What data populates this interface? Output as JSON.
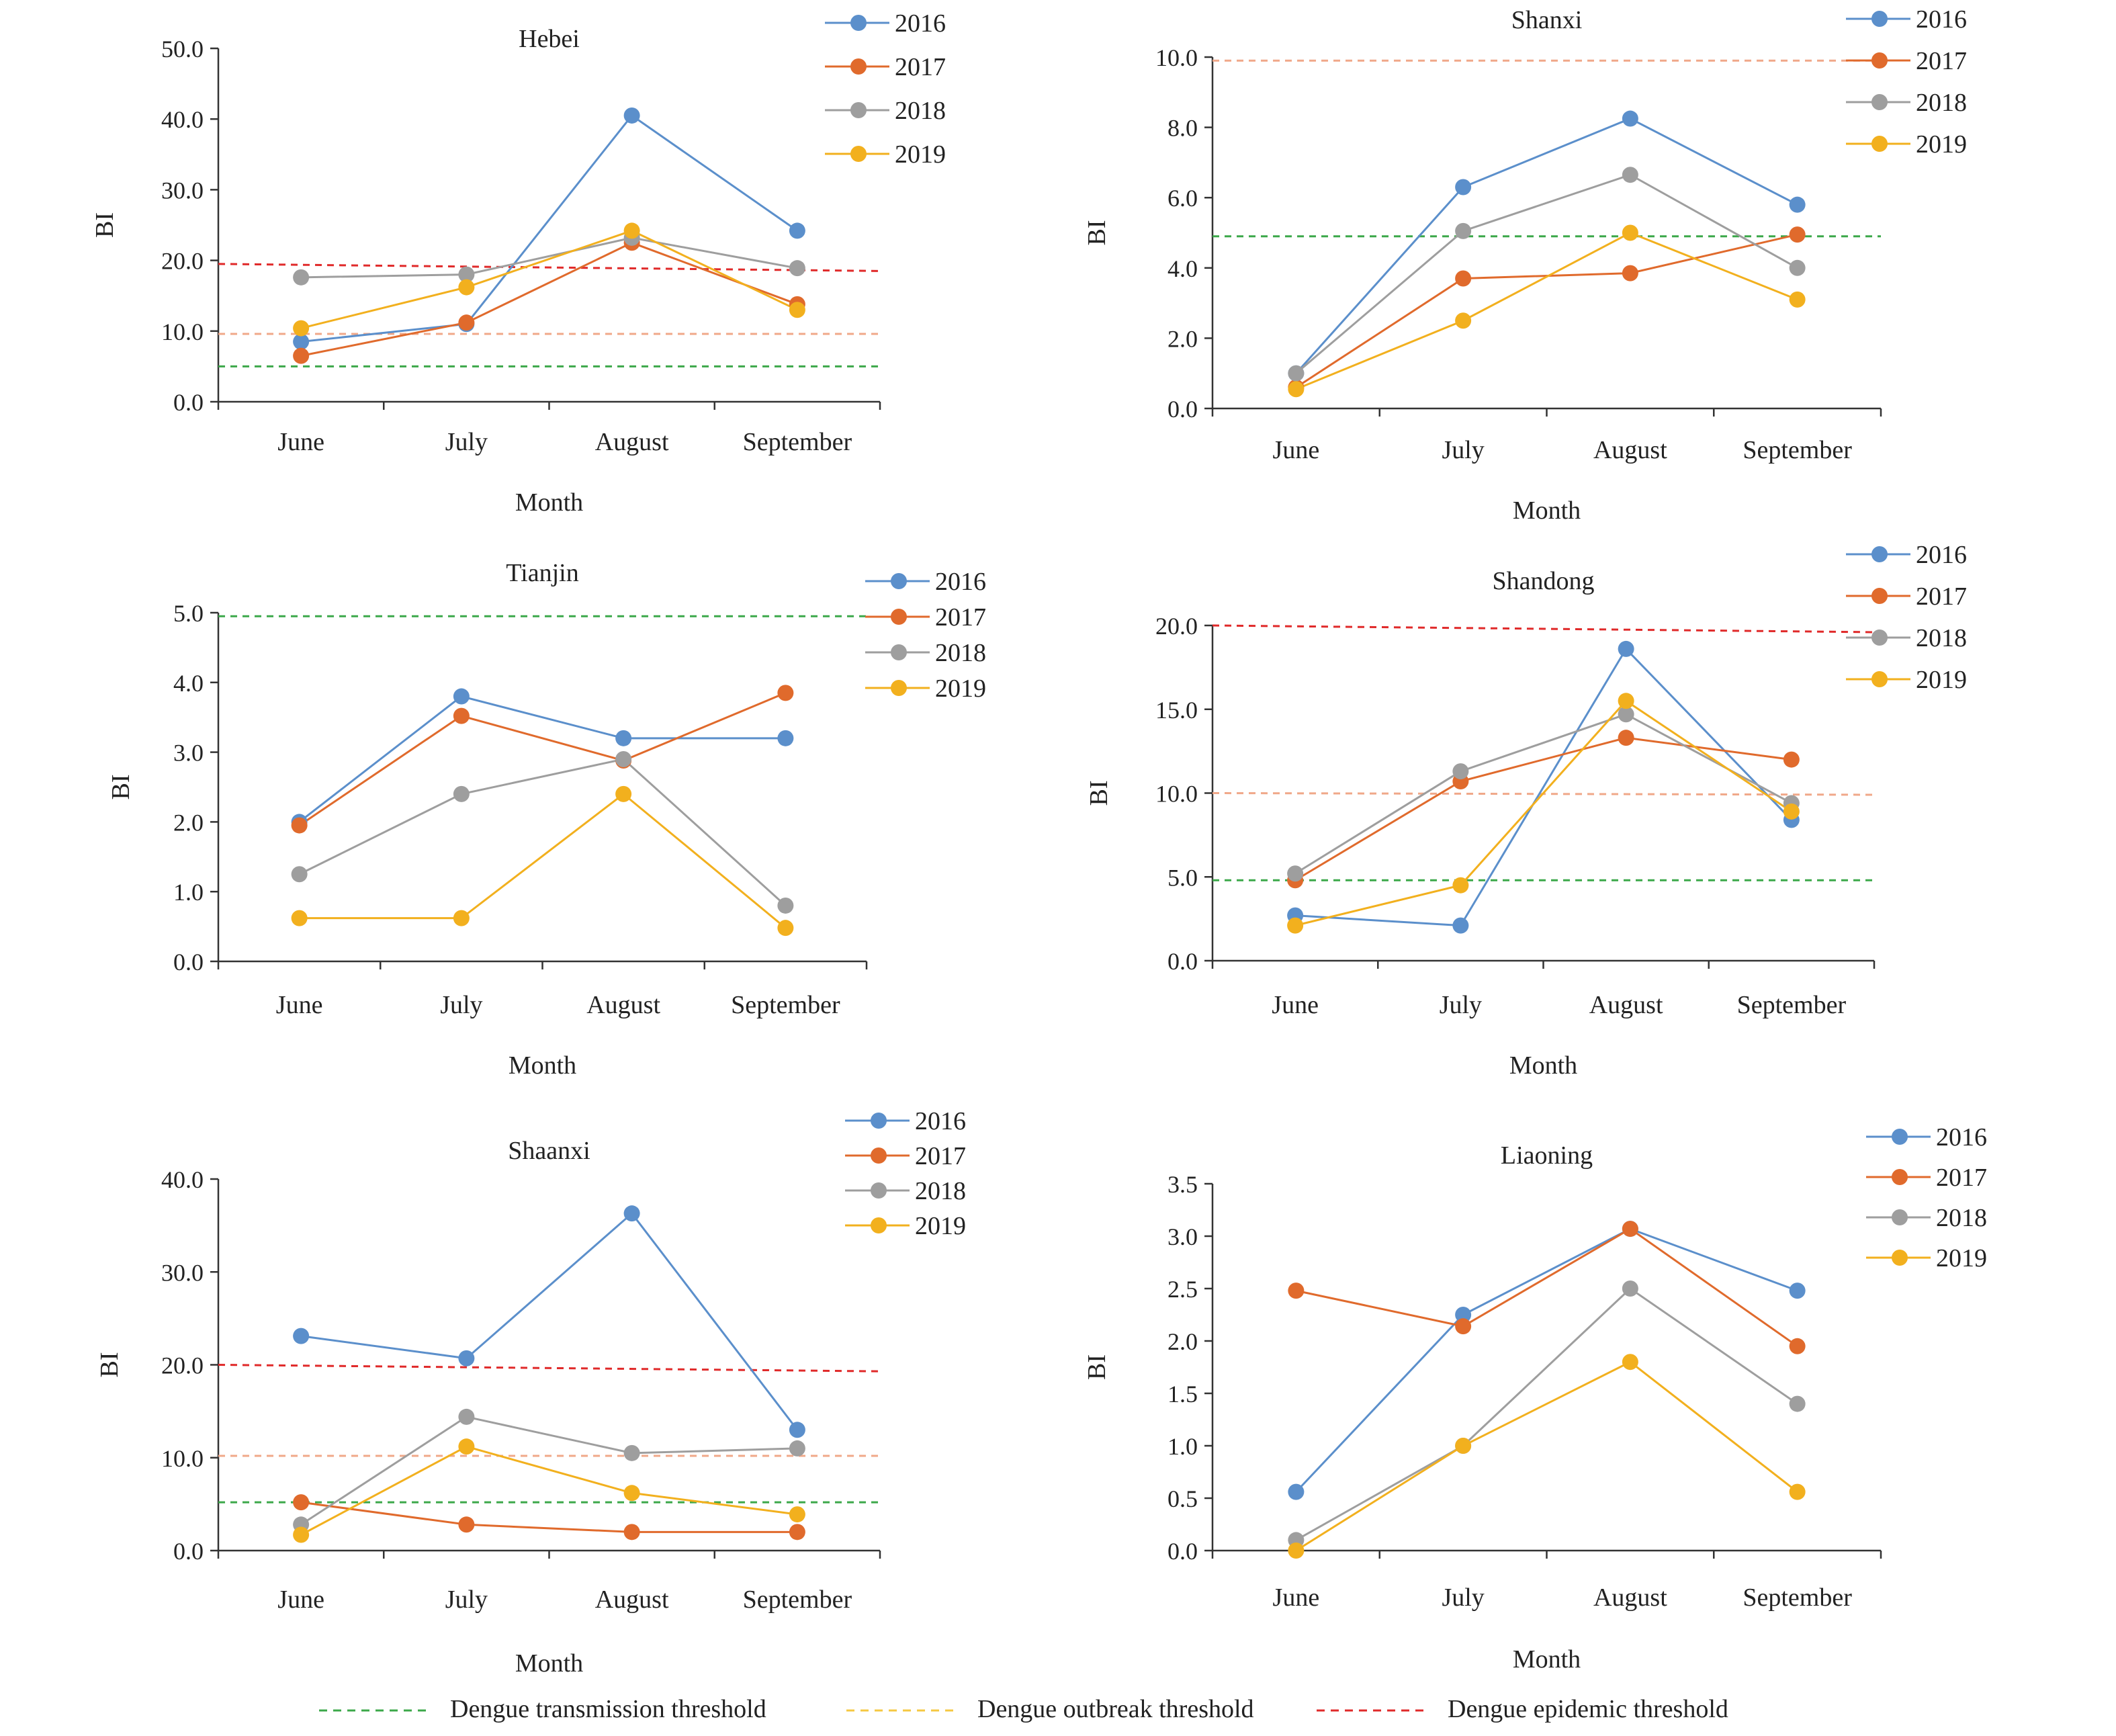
{
  "colors": {
    "2016": "#5B8FCB",
    "2017": "#E06A2C",
    "2018": "#9E9E9E",
    "2019": "#F2B01E",
    "transmission": "#3CA84A",
    "outbreak": "#F0A889",
    "epidemic": "#E02A2A",
    "outbreak_legend": "#F5C842",
    "axis": "#333333"
  },
  "legend": {
    "transmission_label": "Dengue transmission threshold",
    "outbreak_label": "Dengue outbreak threshold",
    "epidemic_label": "Dengue epidemic threshold"
  },
  "chart_data": [
    {
      "type": "line",
      "title": "Hebei",
      "xlabel": "Month",
      "ylabel": "BI",
      "categories": [
        "June",
        "July",
        "August",
        "September"
      ],
      "ylim": [
        0,
        50
      ],
      "yticks": [
        "0.0",
        "10.0",
        "20.0",
        "30.0",
        "40.0",
        "50.0"
      ],
      "series": [
        {
          "name": "2016",
          "values": [
            8.5,
            11.0,
            40.5,
            24.2
          ]
        },
        {
          "name": "2017",
          "values": [
            6.5,
            11.2,
            22.5,
            13.8
          ]
        },
        {
          "name": "2018",
          "values": [
            17.6,
            18.0,
            23.2,
            18.9
          ]
        },
        {
          "name": "2019",
          "values": [
            10.4,
            16.2,
            24.2,
            13.0
          ]
        }
      ],
      "thresholds": [
        {
          "kind": "transmission",
          "value": [
            5.0,
            5.0
          ]
        },
        {
          "kind": "outbreak",
          "value": [
            9.6,
            9.6
          ]
        },
        {
          "kind": "epidemic",
          "value": [
            19.5,
            18.5
          ]
        }
      ]
    },
    {
      "type": "line",
      "title": "Shanxi",
      "xlabel": "Month",
      "ylabel": "BI",
      "categories": [
        "June",
        "July",
        "August",
        "September"
      ],
      "ylim": [
        0,
        10
      ],
      "yticks": [
        "0.0",
        "2.0",
        "4.0",
        "6.0",
        "8.0",
        "10.0"
      ],
      "series": [
        {
          "name": "2016",
          "values": [
            1.0,
            6.3,
            8.25,
            5.8
          ]
        },
        {
          "name": "2017",
          "values": [
            0.6,
            3.7,
            3.85,
            4.95
          ]
        },
        {
          "name": "2018",
          "values": [
            1.0,
            5.05,
            6.65,
            4.0
          ]
        },
        {
          "name": "2019",
          "values": [
            0.55,
            2.5,
            5.0,
            3.1
          ]
        }
      ],
      "thresholds": [
        {
          "kind": "transmission",
          "value": [
            4.9,
            4.9
          ]
        },
        {
          "kind": "outbreak",
          "value": [
            9.9,
            9.9
          ]
        }
      ]
    },
    {
      "type": "line",
      "title": "Tianjin",
      "xlabel": "Month",
      "ylabel": "BI",
      "categories": [
        "June",
        "July",
        "August",
        "September"
      ],
      "ylim": [
        0,
        5
      ],
      "yticks": [
        "0.0",
        "1.0",
        "2.0",
        "3.0",
        "4.0",
        "5.0"
      ],
      "series": [
        {
          "name": "2016",
          "values": [
            2.0,
            3.8,
            3.2,
            3.2
          ]
        },
        {
          "name": "2017",
          "values": [
            1.95,
            3.52,
            2.88,
            3.85
          ]
        },
        {
          "name": "2018",
          "values": [
            1.25,
            2.4,
            2.9,
            0.8
          ]
        },
        {
          "name": "2019",
          "values": [
            0.62,
            0.62,
            2.4,
            0.48
          ]
        }
      ],
      "thresholds": [
        {
          "kind": "transmission",
          "value": [
            4.95,
            4.95
          ]
        }
      ]
    },
    {
      "type": "line",
      "title": "Shandong",
      "xlabel": "Month",
      "ylabel": "BI",
      "categories": [
        "June",
        "July",
        "August",
        "September"
      ],
      "ylim": [
        0,
        20
      ],
      "yticks": [
        "0.0",
        "5.0",
        "10.0",
        "15.0",
        "20.0"
      ],
      "series": [
        {
          "name": "2016",
          "values": [
            2.7,
            2.1,
            18.6,
            8.4
          ]
        },
        {
          "name": "2017",
          "values": [
            4.8,
            10.7,
            13.3,
            12.0
          ]
        },
        {
          "name": "2018",
          "values": [
            5.2,
            11.3,
            14.7,
            9.4
          ]
        },
        {
          "name": "2019",
          "values": [
            2.1,
            4.5,
            15.5,
            8.9
          ]
        }
      ],
      "thresholds": [
        {
          "kind": "transmission",
          "value": [
            4.8,
            4.8
          ]
        },
        {
          "kind": "outbreak",
          "value": [
            10.0,
            9.9
          ]
        },
        {
          "kind": "epidemic",
          "value": [
            20.0,
            19.6
          ]
        }
      ]
    },
    {
      "type": "line",
      "title": "Shaanxi",
      "xlabel": "Month",
      "ylabel": "BI",
      "categories": [
        "June",
        "July",
        "August",
        "September"
      ],
      "ylim": [
        0,
        40
      ],
      "yticks": [
        "0.0",
        "10.0",
        "20.0",
        "30.0",
        "40.0"
      ],
      "series": [
        {
          "name": "2016",
          "values": [
            23.1,
            20.7,
            36.3,
            13.0
          ]
        },
        {
          "name": "2017",
          "values": [
            5.2,
            2.8,
            2.0,
            2.0
          ]
        },
        {
          "name": "2018",
          "values": [
            2.8,
            14.4,
            10.5,
            11.0
          ]
        },
        {
          "name": "2019",
          "values": [
            1.7,
            11.2,
            6.2,
            3.9
          ]
        }
      ],
      "thresholds": [
        {
          "kind": "transmission",
          "value": [
            5.2,
            5.2
          ]
        },
        {
          "kind": "outbreak",
          "value": [
            10.2,
            10.2
          ]
        },
        {
          "kind": "epidemic",
          "value": [
            20.0,
            19.3
          ]
        }
      ]
    },
    {
      "type": "line",
      "title": "Liaoning",
      "xlabel": "Month",
      "ylabel": "BI",
      "categories": [
        "June",
        "July",
        "August",
        "September"
      ],
      "ylim": [
        0,
        3.5
      ],
      "yticks": [
        "0.0",
        "0.5",
        "1.0",
        "1.5",
        "2.0",
        "2.5",
        "3.0",
        "3.5"
      ],
      "series": [
        {
          "name": "2016",
          "values": [
            0.56,
            2.25,
            3.07,
            2.48
          ]
        },
        {
          "name": "2017",
          "values": [
            2.48,
            2.14,
            3.07,
            1.95
          ]
        },
        {
          "name": "2018",
          "values": [
            0.1,
            1.0,
            2.5,
            1.4
          ]
        },
        {
          "name": "2019",
          "values": [
            0.0,
            1.0,
            1.8,
            0.56
          ]
        }
      ],
      "thresholds": []
    }
  ]
}
